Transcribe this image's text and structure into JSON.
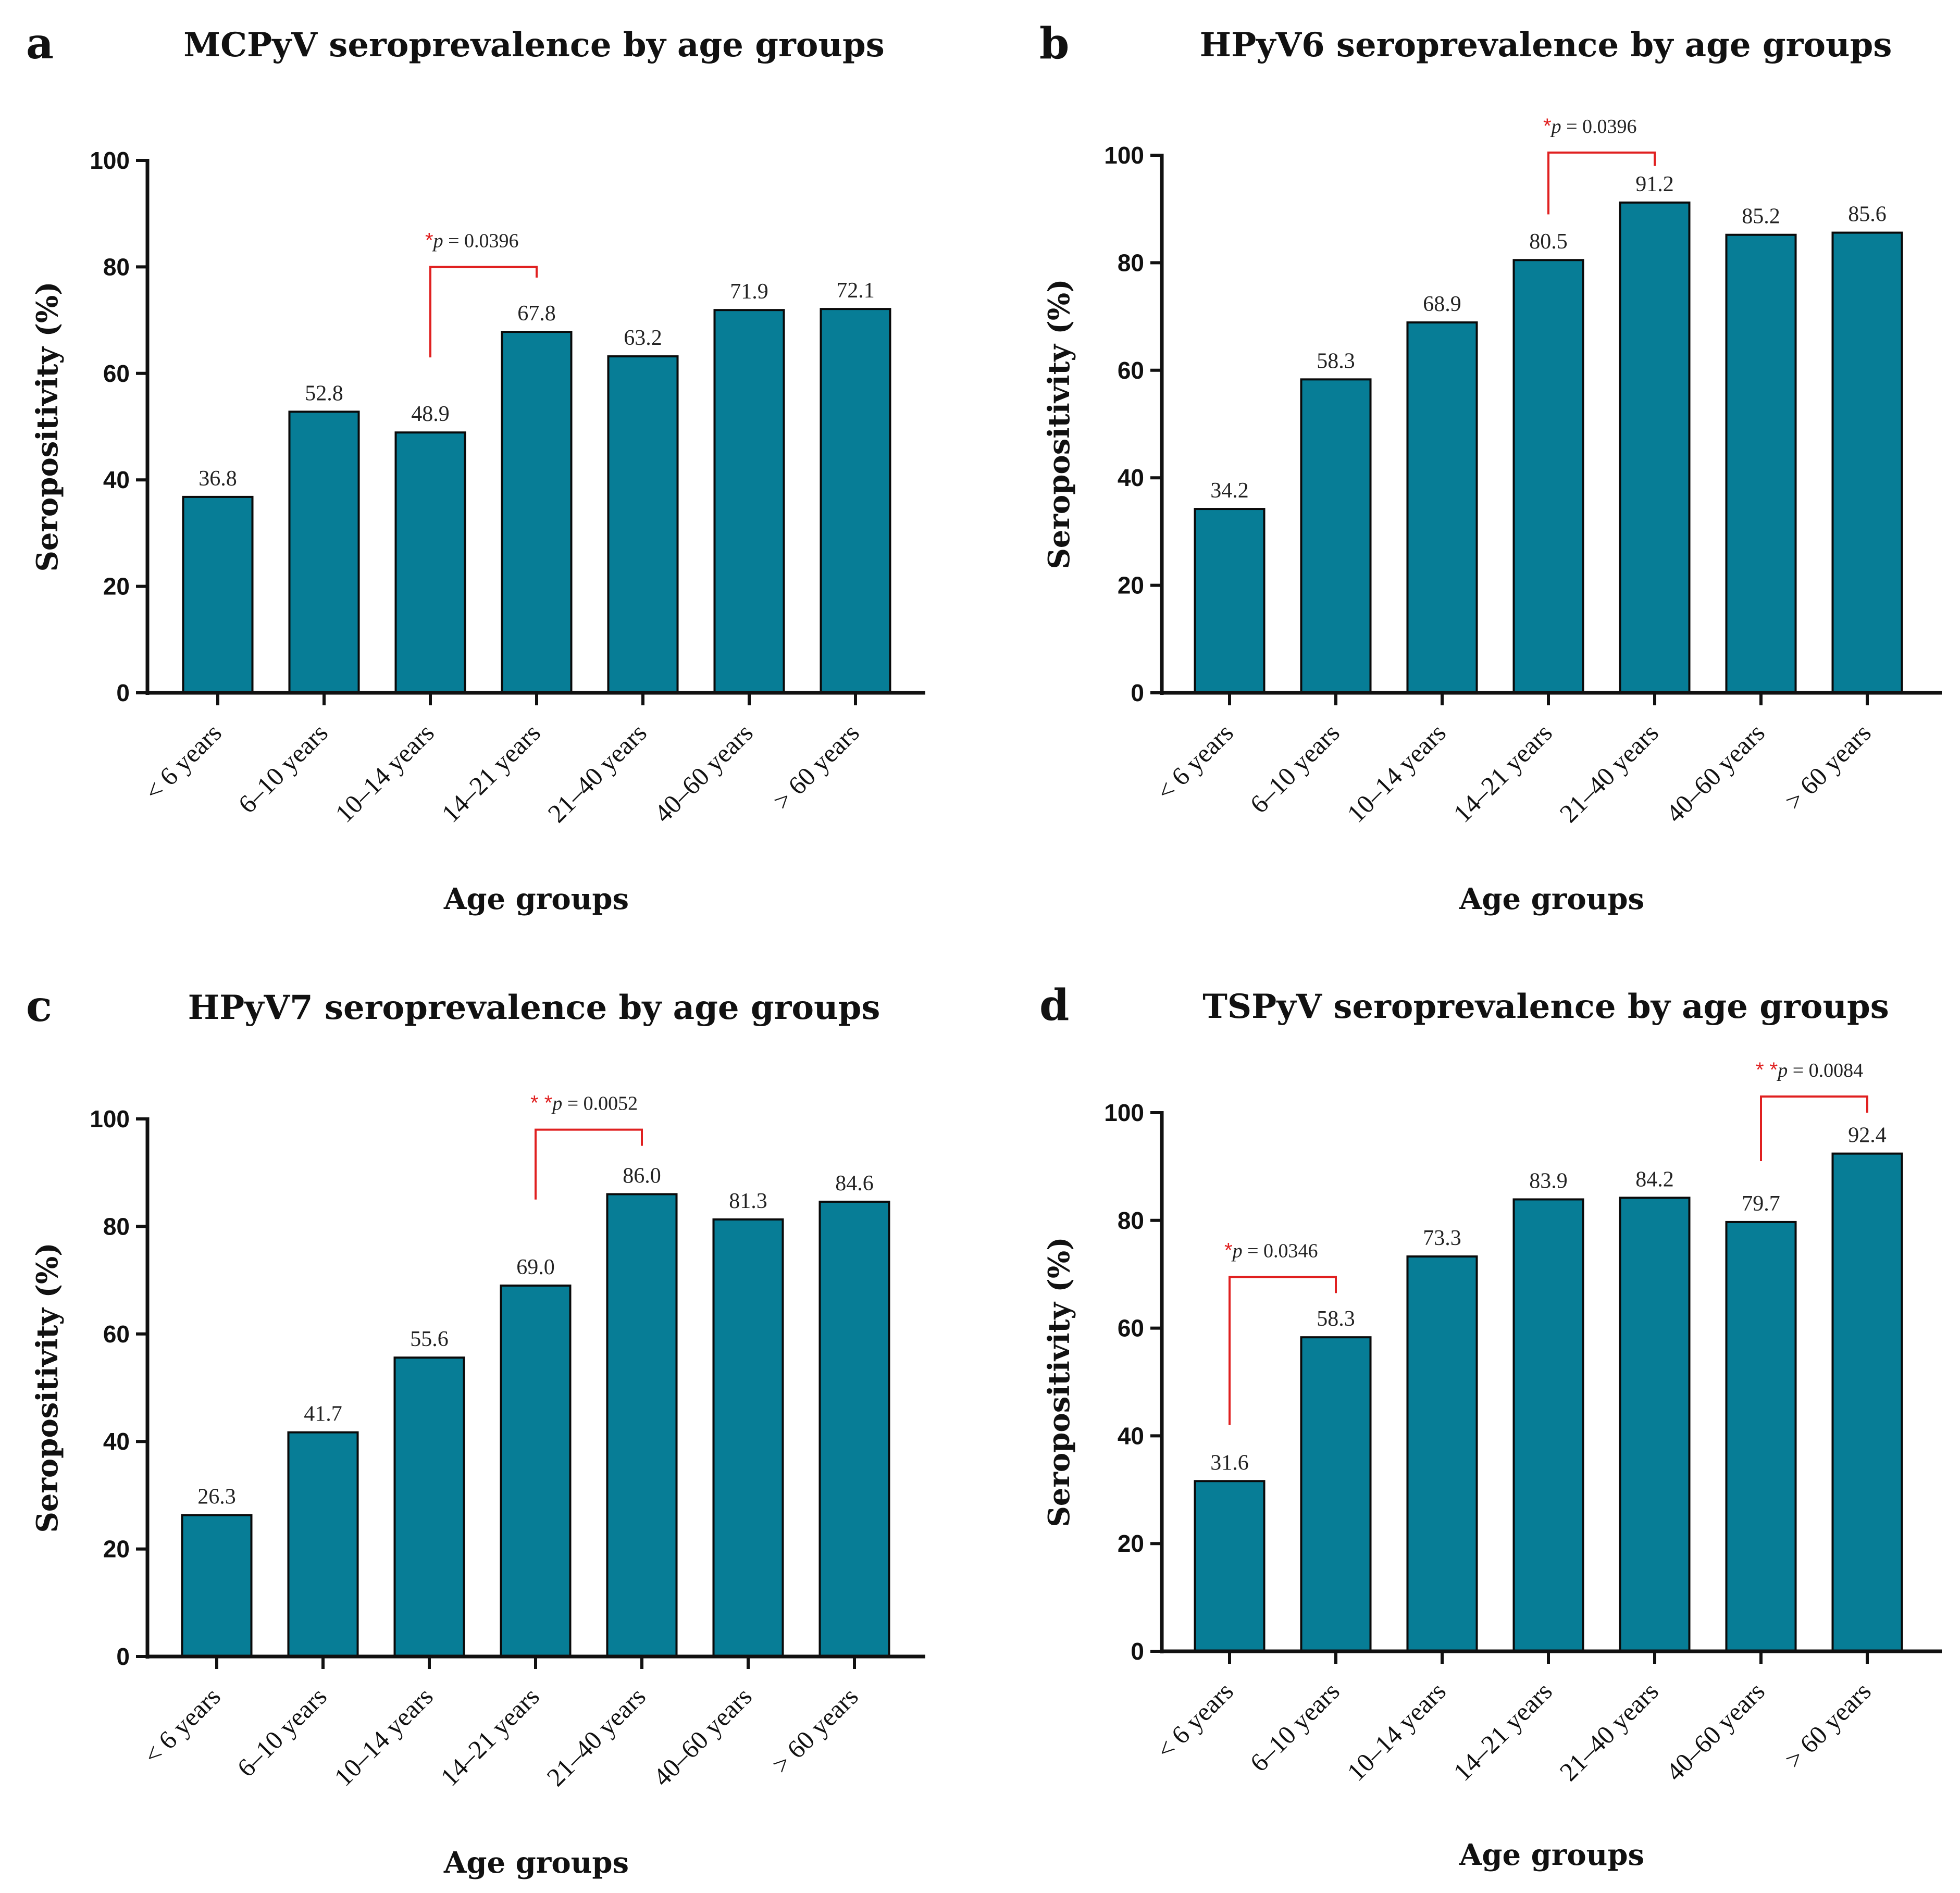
{
  "figure": {
    "x_axis_label": "Age groups",
    "y_axis_label": "Seropositivity (%)"
  },
  "colors": {
    "bar": "#077d96",
    "significance": "#e02020",
    "axis": "#111111"
  },
  "chart_data": [
    {
      "panel": "a",
      "type": "bar",
      "title": "MCPyV seroprevalence by age groups",
      "xlabel": "Age groups",
      "ylabel": "Seropositivity (%)",
      "ylim": [
        0,
        100
      ],
      "yticks": [
        0,
        20,
        40,
        60,
        80,
        100
      ],
      "categories": [
        "< 6 years",
        "6–10 years",
        "10–14 years",
        "14–21 years",
        "21–40 years",
        "40–60 years",
        "> 60 years"
      ],
      "values": [
        36.8,
        52.8,
        48.9,
        67.8,
        63.2,
        71.9,
        72.1
      ],
      "value_labels": [
        "36.8",
        "52.8",
        "48.9",
        "67.8",
        "63.2",
        "71.9",
        "72.1"
      ],
      "annotations": [
        {
          "from": 2,
          "to": 3,
          "level": 80,
          "left_end": 63,
          "right_end": 78,
          "stars": "*",
          "p_letter": "p",
          "p_value": " = 0.0396"
        }
      ]
    },
    {
      "panel": "b",
      "type": "bar",
      "title": "HPyV6 seroprevalence by age groups",
      "xlabel": "Age groups",
      "ylabel": "Seropositivity (%)",
      "ylim": [
        0,
        100
      ],
      "yticks": [
        0,
        20,
        40,
        60,
        80,
        100
      ],
      "categories": [
        "< 6 years",
        "6–10 years",
        "10–14 years",
        "14–21 years",
        "21–40 years",
        "40–60 years",
        "> 60 years"
      ],
      "values": [
        34.2,
        58.3,
        68.9,
        80.5,
        91.2,
        85.2,
        85.6
      ],
      "value_labels": [
        "34.2",
        "58.3",
        "68.9",
        "80.5",
        "91.2",
        "85.2",
        "85.6"
      ],
      "annotations": [
        {
          "from": 3,
          "to": 4,
          "level": 100.5,
          "left_end": 89,
          "right_end": 98,
          "stars": "*",
          "p_letter": "p",
          "p_value": " = 0.0396"
        }
      ]
    },
    {
      "panel": "c",
      "type": "bar",
      "title": "HPyV7 seroprevalence by age groups",
      "xlabel": "Age groups",
      "ylabel": "Seropositivity (%)",
      "ylim": [
        0,
        100
      ],
      "yticks": [
        0,
        20,
        40,
        60,
        80,
        100
      ],
      "categories": [
        "< 6 years",
        "6–10 years",
        "10–14 years",
        "14–21 years",
        "21–40 years",
        "40–60 years",
        "> 60 years"
      ],
      "values": [
        26.3,
        41.7,
        55.6,
        69.0,
        86.0,
        81.3,
        84.6
      ],
      "value_labels": [
        "26.3",
        "41.7",
        "55.6",
        "69.0",
        "86.0",
        "81.3",
        "84.6"
      ],
      "annotations": [
        {
          "from": 3,
          "to": 4,
          "level": 98,
          "left_end": 85,
          "right_end": 95,
          "stars": "* *",
          "p_letter": "p",
          "p_value": " = 0.0052"
        }
      ]
    },
    {
      "panel": "d",
      "type": "bar",
      "title": "TSPyV seroprevalence by age groups",
      "xlabel": "Age groups",
      "ylabel": "Seropositivity (%)",
      "ylim": [
        0,
        100
      ],
      "yticks": [
        0,
        20,
        40,
        60,
        80,
        100
      ],
      "categories": [
        "< 6 years",
        "6–10 years",
        "10–14 years",
        "14–21 years",
        "21–40 years",
        "40–60 years",
        "> 60 years"
      ],
      "values": [
        31.6,
        58.3,
        73.3,
        83.9,
        84.2,
        79.7,
        92.4
      ],
      "value_labels": [
        "31.6",
        "58.3",
        "73.3",
        "83.9",
        "84.2",
        "79.7",
        "92.4"
      ],
      "annotations": [
        {
          "from": 0,
          "to": 1,
          "level": 69.5,
          "left_end": 42,
          "right_end": 66.5,
          "stars": "*",
          "p_letter": "p",
          "p_value": " = 0.0346"
        },
        {
          "from": 5,
          "to": 6,
          "level": 103,
          "left_end": 91,
          "right_end": 100,
          "stars": "* *",
          "p_letter": "p",
          "p_value": " = 0.0084"
        }
      ]
    }
  ]
}
